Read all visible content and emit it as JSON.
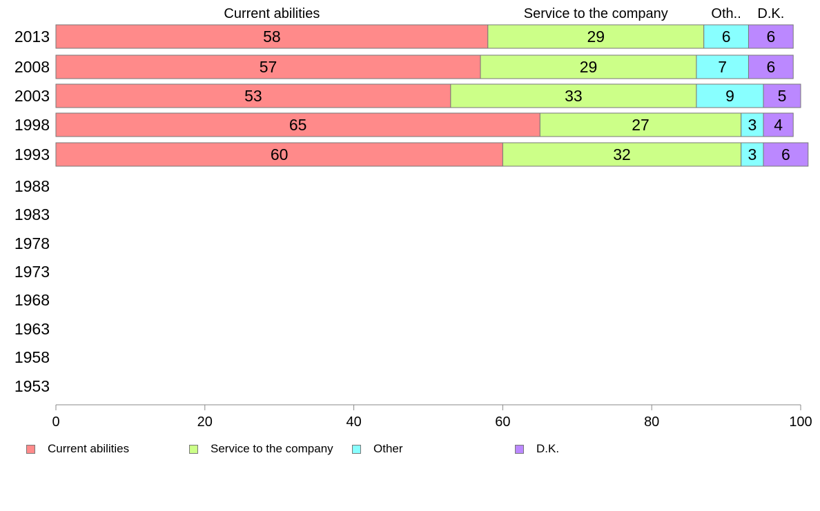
{
  "chart_data": {
    "type": "bar",
    "orientation": "horizontal",
    "stacked": true,
    "categories": [
      "2013",
      "2008",
      "2003",
      "1998",
      "1993",
      "1988",
      "1983",
      "1978",
      "1973",
      "1968",
      "1963",
      "1958",
      "1953"
    ],
    "series": [
      {
        "name": "Current abilities",
        "values": [
          58,
          57,
          53,
          65,
          60,
          null,
          null,
          null,
          null,
          null,
          null,
          null,
          null
        ],
        "color": "#ff8a8a"
      },
      {
        "name": "Service to the company",
        "values": [
          29,
          29,
          33,
          27,
          32,
          null,
          null,
          null,
          null,
          null,
          null,
          null,
          null
        ],
        "color": "#ccff88"
      },
      {
        "name": "Other",
        "values": [
          6,
          7,
          9,
          3,
          3,
          null,
          null,
          null,
          null,
          null,
          null,
          null,
          null
        ],
        "color": "#88ffff"
      },
      {
        "name": "D.K.",
        "values": [
          6,
          6,
          5,
          4,
          6,
          null,
          null,
          null,
          null,
          null,
          null,
          null,
          null
        ],
        "color": "#bb88ff"
      }
    ],
    "top_labels": [
      "Current abilities",
      "Service to the company",
      "Oth..",
      "D.K."
    ],
    "xlim": [
      0,
      100
    ],
    "xticks": [
      "0",
      "20",
      "40",
      "60",
      "80",
      "100"
    ],
    "grid": false,
    "legend_position": "bottom"
  }
}
